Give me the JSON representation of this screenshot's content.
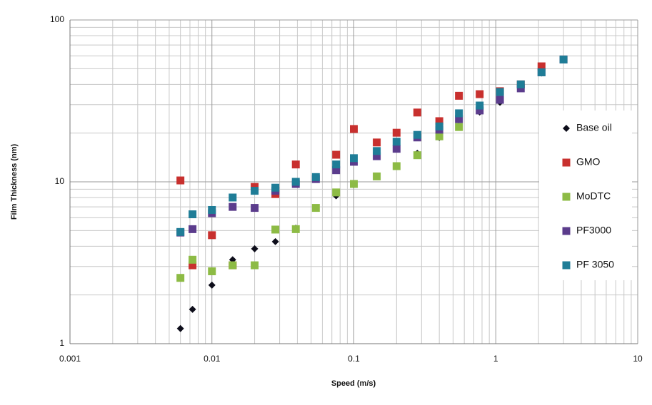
{
  "chart_data": {
    "type": "scatter",
    "xlabel": "Speed (m/s)",
    "ylabel": "Film Thickness (nm)",
    "xscale": "log",
    "yscale": "log",
    "xlim": [
      0.001,
      10
    ],
    "ylim": [
      1,
      100
    ],
    "xticks": [
      0.001,
      0.01,
      0.1,
      1,
      10
    ],
    "yticks": [
      1,
      10,
      100
    ],
    "grid": true,
    "minor_grid": true,
    "legend": "right",
    "x": [
      0.006,
      0.0073,
      0.01,
      0.014,
      0.02,
      0.028,
      0.039,
      0.054,
      0.075,
      0.1,
      0.145,
      0.2,
      0.28,
      0.4,
      0.55,
      0.77,
      1.07,
      1.5,
      2.1,
      3.0
    ],
    "series": [
      {
        "name": "Base oil",
        "color": "#0d0d1a",
        "marker": "diamond",
        "values": [
          1.24,
          1.63,
          2.3,
          3.3,
          3.86,
          4.27,
          5.17,
          6.9,
          8.2,
          9.6,
          10.8,
          12.5,
          15,
          18.8,
          22,
          27,
          31,
          38,
          47,
          57
        ]
      },
      {
        "name": "GMO",
        "color": "#c8302e",
        "marker": "square",
        "values": [
          10.2,
          3.05,
          4.68,
          3.05,
          9.3,
          8.4,
          12.8,
          null,
          14.7,
          21.2,
          17.5,
          20.1,
          26.8,
          23.7,
          34,
          34.8,
          36.3,
          40,
          51.7,
          57
        ]
      },
      {
        "name": "MoDTC",
        "color": "#8dbb45",
        "marker": "square",
        "values": [
          2.55,
          3.3,
          2.8,
          3.05,
          3.05,
          5.07,
          5.1,
          6.9,
          8.6,
          9.7,
          10.8,
          12.5,
          14.6,
          19.1,
          21.8,
          null,
          null,
          null,
          null,
          null
        ]
      },
      {
        "name": "PF3000",
        "color": "#5b3c8c",
        "marker": "square",
        "values": [
          4.86,
          5.1,
          6.4,
          7.0,
          6.9,
          8.8,
          9.7,
          10.4,
          11.8,
          13.3,
          14.4,
          16,
          18.8,
          21,
          24.4,
          27.6,
          32.1,
          37.8,
          47.5,
          57
        ]
      },
      {
        "name": "PF 3050",
        "color": "#1f7d97",
        "marker": "square",
        "values": [
          4.9,
          6.3,
          6.7,
          8.0,
          8.8,
          9.2,
          10,
          10.7,
          12.8,
          14,
          15.5,
          17.7,
          19.5,
          22,
          26.5,
          29.6,
          35.9,
          40,
          47.5,
          57
        ]
      }
    ]
  }
}
